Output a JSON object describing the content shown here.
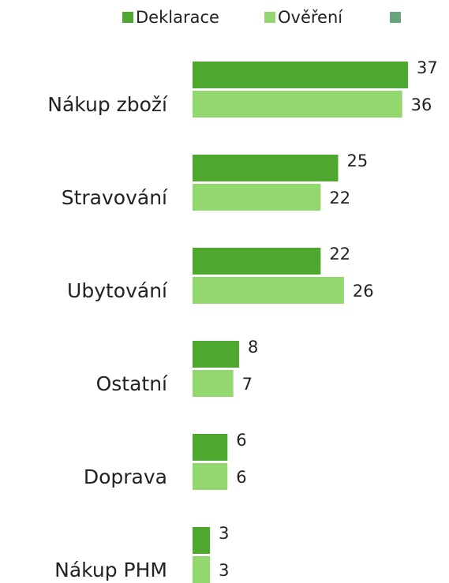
{
  "chart_data": {
    "type": "bar",
    "orientation": "horizontal",
    "categories": [
      "Nákup zboží",
      "Stravování",
      "Ubytování",
      "Ostatní",
      "Doprava",
      "Nákup PHM"
    ],
    "series": [
      {
        "name": "Deklarace",
        "color": "#4ea72e",
        "values": [
          37,
          25,
          22,
          8,
          6,
          3
        ]
      },
      {
        "name": "Ověření",
        "color": "#92d86f",
        "values": [
          36,
          22,
          26,
          7,
          6,
          3
        ]
      }
    ]
  }
}
